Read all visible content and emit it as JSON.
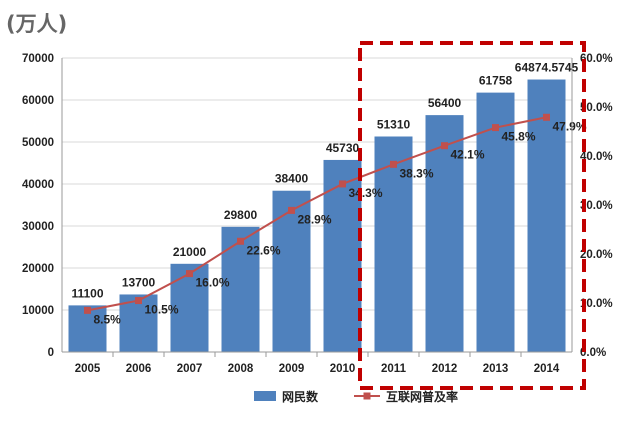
{
  "unit_label": "(万人)",
  "chart_data": {
    "type": "bar",
    "categories": [
      "2005",
      "2006",
      "2007",
      "2008",
      "2009",
      "2010",
      "2011",
      "2012",
      "2013",
      "2014"
    ],
    "series": [
      {
        "name": "网民数",
        "kind": "bar",
        "axis": "left",
        "color": "#4F81BD",
        "values": [
          11100,
          13700,
          21000,
          29800,
          38400,
          45730,
          51310,
          56400,
          61758,
          64874.5745
        ],
        "labels": [
          "11100",
          "13700",
          "21000",
          "29800",
          "38400",
          "45730",
          "51310",
          "56400",
          "61758",
          "64874.5745"
        ]
      },
      {
        "name": "互联网普及率",
        "kind": "line",
        "axis": "right",
        "color": "#C0504D",
        "values": [
          8.5,
          10.5,
          16.0,
          22.6,
          28.9,
          34.3,
          38.3,
          42.1,
          45.8,
          47.9
        ],
        "labels": [
          "8.5%",
          "10.5%",
          "16.0%",
          "22.6%",
          "28.9%",
          "34.3%",
          "38.3%",
          "42.1%",
          "45.8%",
          "47.9%"
        ]
      }
    ],
    "y_left": {
      "min": 0,
      "max": 70000,
      "ticks": [
        "0",
        "10000",
        "20000",
        "30000",
        "40000",
        "50000",
        "60000",
        "70000"
      ]
    },
    "y_right": {
      "min": 0,
      "max": 60,
      "ticks": [
        "0.0%",
        "10.0%",
        "20.0%",
        "30.0%",
        "40.0%",
        "50.0%",
        "60.0%"
      ]
    },
    "grid": true,
    "legend_position": "bottom",
    "highlight": {
      "from": "2011",
      "to": "2014",
      "style": "dashed red box",
      "color": "#C00000"
    }
  }
}
